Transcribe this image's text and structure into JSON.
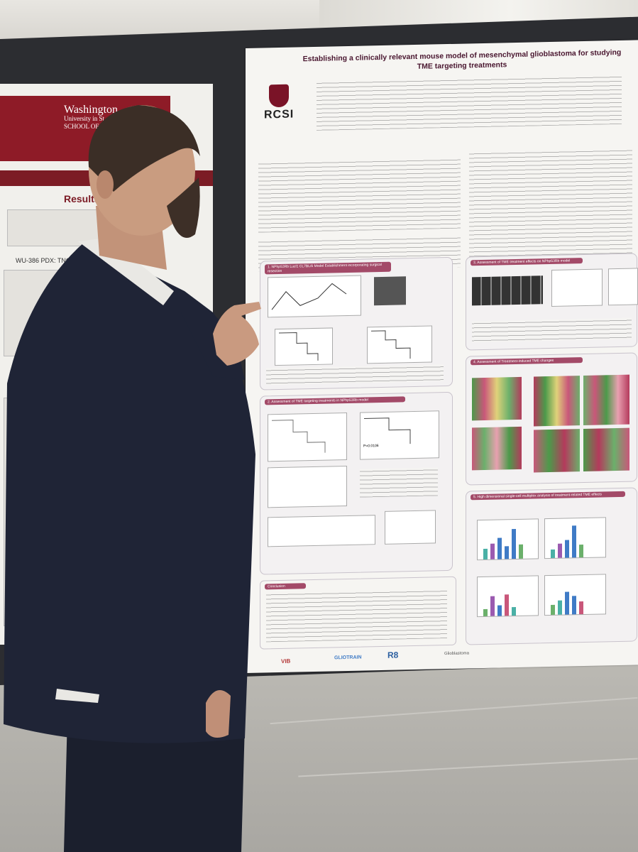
{
  "left_poster": {
    "institution": "Washington",
    "institution_line2": "University in St.",
    "school": "SCHOOL OF M",
    "section_title": "Results(co",
    "figure_label": "WU-386 PDX: TNGR"
  },
  "main_poster": {
    "title_line1": "Establishing a clinically relevant mouse model of mesenchymal glioblastoma for studying",
    "title_line2": "TME targeting treatments",
    "logo_text": "RCSI",
    "sections": {
      "s1": "1. NPhp53Rb Lucl1 CL7BL/6 Model Establishment incorporating surgical resection",
      "s2": "2. Assessment of TME targeting treatments in NPhp53Rb model",
      "s3": "3. Assessment of TME treatment effects on NPhp53Rb model",
      "s4": "4. Assessment of Treatment-induced TME changes",
      "s5": "5. High dimensional single-cell multiplex analysis of treatment-related TME effects",
      "conclusion": "Conclusion"
    },
    "pvalue": "P=0.0106",
    "sponsor_logos": [
      "VIB",
      "GLIOTRAIN",
      "R8",
      "Glioblastoma"
    ]
  }
}
